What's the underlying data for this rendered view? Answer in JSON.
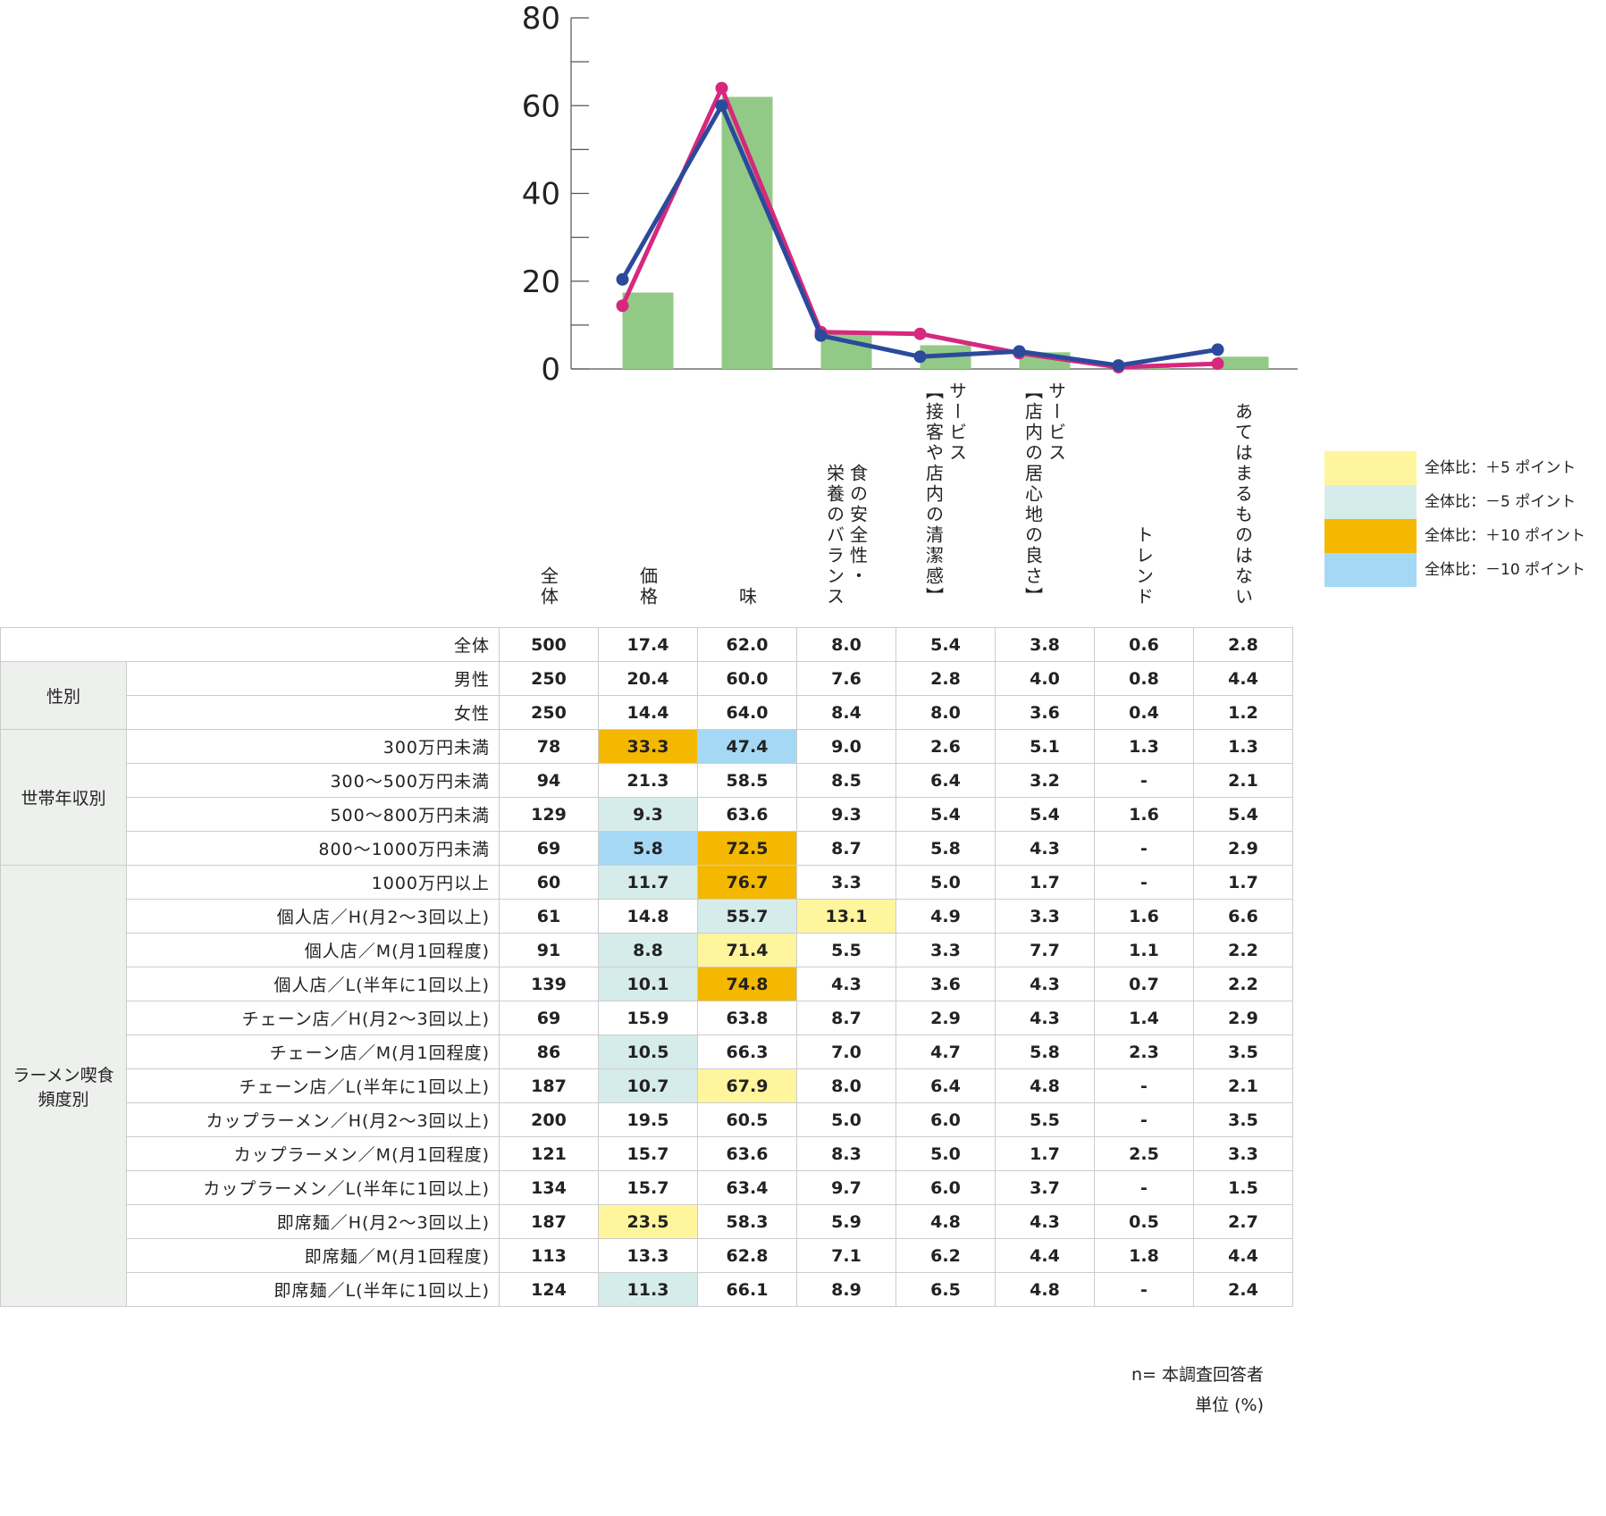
{
  "chart_data": {
    "type": "bar-line",
    "ylim": [
      0,
      80
    ],
    "yticks": [
      0,
      20,
      40,
      60,
      80
    ],
    "minor_yticks": [
      10,
      30,
      50,
      70
    ],
    "bar_color": "#93c987",
    "line_colors": [
      "#2b4a9b",
      "#d6287e"
    ]
  },
  "columns": [
    [
      "全体"
    ],
    [
      "価格"
    ],
    [
      "味"
    ],
    [
      "食の安全性・",
      "栄養のバランス"
    ],
    [
      "サービス",
      "【接客や店内の清潔感】"
    ],
    [
      "サービス",
      "【店内の居心地の良さ】"
    ],
    [
      "トレンド"
    ],
    [
      "あてはまるものはない"
    ]
  ],
  "legend": [
    {
      "label": "全体比：＋5 ポイント",
      "color": "#fff59d"
    },
    {
      "label": "全体比：－5 ポイント",
      "color": "#d6ecea"
    },
    {
      "label": "全体比：＋10 ポイント",
      "color": "#f5b800"
    },
    {
      "label": "全体比：－10 ポイント",
      "color": "#a5d8f5"
    }
  ],
  "table": {
    "rows": [
      {
        "label": "全体",
        "n": "500",
        "values": [
          "17.4",
          "62.0",
          "8.0",
          "5.4",
          "3.8",
          "0.6",
          "2.8"
        ]
      },
      {
        "group": [
          "性別"
        ],
        "label": "男性",
        "n": "250",
        "values": [
          "20.4",
          "60.0",
          "7.6",
          "2.8",
          "4.0",
          "0.8",
          "4.4"
        ]
      },
      {
        "label": "女性",
        "n": "250",
        "values": [
          "14.4",
          "64.0",
          "8.4",
          "8.0",
          "3.6",
          "0.4",
          "1.2"
        ]
      },
      {
        "group": [
          "世帯年収別"
        ],
        "label": "300万円未満",
        "n": "78",
        "values": [
          {
            "text": "33.3",
            "level": 2
          },
          {
            "text": "47.4",
            "level": 3
          },
          "9.0",
          "2.6",
          "5.1",
          "1.3",
          "1.3"
        ]
      },
      {
        "label": "300～500万円未満",
        "n": "94",
        "values": [
          "21.3",
          "58.5",
          "8.5",
          "6.4",
          "3.2",
          "-",
          "2.1"
        ]
      },
      {
        "label": "500～800万円未満",
        "n": "129",
        "values": [
          {
            "text": "9.3",
            "level": 1
          },
          "63.6",
          "9.3",
          "5.4",
          "5.4",
          "1.6",
          "5.4"
        ]
      },
      {
        "label": "800～1000万円未満",
        "n": "69",
        "values": [
          {
            "text": "5.8",
            "level": 3
          },
          {
            "text": "72.5",
            "level": 2
          },
          "8.7",
          "5.8",
          "4.3",
          "-",
          "2.9"
        ]
      },
      {
        "group": [
          "ラーメン喫食",
          "頻度別"
        ],
        "label": "1000万円以上",
        "n": "60",
        "values": [
          {
            "text": "11.7",
            "level": 1
          },
          {
            "text": "76.7",
            "level": 2
          },
          "3.3",
          "5.0",
          "1.7",
          "-",
          "1.7"
        ]
      },
      {
        "label": "個人店／H(月2～3回以上)",
        "n": "61",
        "values": [
          "14.8",
          {
            "text": "55.7",
            "level": 1
          },
          {
            "text": "13.1",
            "level": 0
          },
          "4.9",
          "3.3",
          "1.6",
          "6.6"
        ]
      },
      {
        "label": "個人店／M(月1回程度)",
        "n": "91",
        "values": [
          {
            "text": "8.8",
            "level": 1
          },
          {
            "text": "71.4",
            "level": 0
          },
          "5.5",
          "3.3",
          "7.7",
          "1.1",
          "2.2"
        ]
      },
      {
        "label": "個人店／L(半年に1回以上)",
        "n": "139",
        "values": [
          {
            "text": "10.1",
            "level": 1
          },
          {
            "text": "74.8",
            "level": 2
          },
          "4.3",
          "3.6",
          "4.3",
          "0.7",
          "2.2"
        ]
      },
      {
        "label": "チェーン店／H(月2～3回以上)",
        "n": "69",
        "values": [
          "15.9",
          "63.8",
          "8.7",
          "2.9",
          "4.3",
          "1.4",
          "2.9"
        ]
      },
      {
        "label": "チェーン店／M(月1回程度)",
        "n": "86",
        "values": [
          {
            "text": "10.5",
            "level": 1
          },
          "66.3",
          "7.0",
          "4.7",
          "5.8",
          "2.3",
          "3.5"
        ]
      },
      {
        "label": "チェーン店／L(半年に1回以上)",
        "n": "187",
        "values": [
          {
            "text": "10.7",
            "level": 1
          },
          {
            "text": "67.9",
            "level": 0
          },
          "8.0",
          "6.4",
          "4.8",
          "-",
          "2.1"
        ]
      },
      {
        "label": "カップラーメン／H(月2～3回以上)",
        "n": "200",
        "values": [
          "19.5",
          "60.5",
          "5.0",
          "6.0",
          "5.5",
          "-",
          "3.5"
        ]
      },
      {
        "label": "カップラーメン／M(月1回程度)",
        "n": "121",
        "values": [
          "15.7",
          "63.6",
          "8.3",
          "5.0",
          "1.7",
          "2.5",
          "3.3"
        ]
      },
      {
        "label": "カップラーメン／L(半年に1回以上)",
        "n": "134",
        "values": [
          "15.7",
          "63.4",
          "9.7",
          "6.0",
          "3.7",
          "-",
          "1.5"
        ]
      },
      {
        "label": "即席麺／H(月2～3回以上)",
        "n": "187",
        "values": [
          {
            "text": "23.5",
            "level": 0
          },
          "58.3",
          "5.9",
          "4.8",
          "4.3",
          "0.5",
          "2.7"
        ]
      },
      {
        "label": "即席麺／M(月1回程度)",
        "n": "113",
        "values": [
          "13.3",
          "62.8",
          "7.1",
          "6.2",
          "4.4",
          "1.8",
          "4.4"
        ]
      },
      {
        "label": "即席麺／L(半年に1回以上)",
        "n": "124",
        "values": [
          {
            "text": "11.3",
            "level": 1
          },
          "66.1",
          "8.9",
          "6.5",
          "4.8",
          "-",
          "2.4"
        ]
      }
    ]
  },
  "notes": [
    "n= 本調査回答者",
    "単位 (%)"
  ]
}
